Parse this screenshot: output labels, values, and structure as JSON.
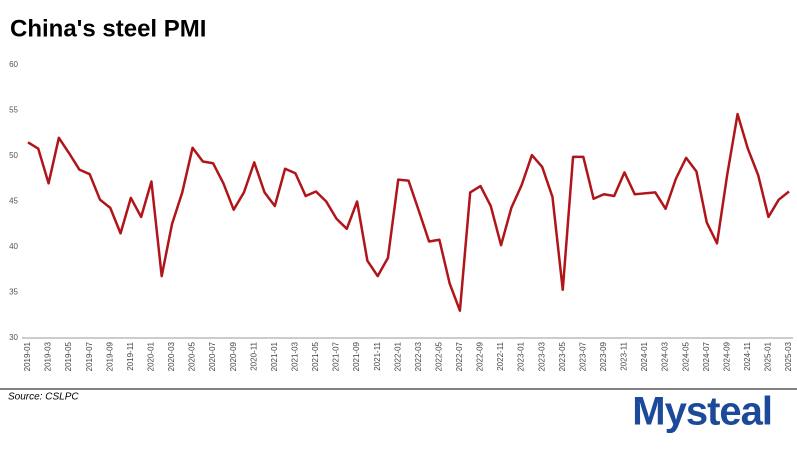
{
  "chart_data": {
    "type": "line",
    "title": "China's steel PMI",
    "source": "Source: CSLPC",
    "logo": "Mysteal",
    "categories": [
      "2019-01",
      null,
      "2019-03",
      null,
      "2019-05",
      null,
      "2019-07",
      null,
      "2019-09",
      null,
      "2019-11",
      null,
      "2020-01",
      null,
      "2020-03",
      null,
      "2020-05",
      null,
      "2020-07",
      null,
      "2020-09",
      null,
      "2020-11",
      null,
      "2021-01",
      null,
      "2021-03",
      null,
      "2021-05",
      null,
      "2021-07",
      null,
      "2021-09",
      null,
      "2021-11",
      null,
      "2022-01",
      null,
      "2022-03",
      null,
      "2022-05",
      null,
      "2022-07",
      null,
      "2022-09",
      null,
      "2022-11",
      null,
      "2023-01",
      null,
      "2023-03",
      null,
      "2023-05",
      null,
      "2023-07",
      null,
      "2023-09",
      null,
      "2023-11",
      null,
      "2024-01",
      null,
      "2024-03",
      null,
      "2024-05",
      null,
      "2024-07",
      null,
      "2024-09",
      null,
      "2024-11",
      null,
      "2025-01",
      null,
      "2025-03"
    ],
    "series": [
      {
        "name": "Steel PMI",
        "color": "#b0151a",
        "values": [
          51.5,
          50.8,
          47.0,
          52.0,
          50.3,
          48.5,
          48.0,
          45.2,
          44.3,
          41.5,
          45.4,
          43.3,
          47.2,
          36.8,
          42.5,
          46.0,
          50.9,
          49.4,
          49.2,
          47.0,
          44.1,
          46.0,
          49.3,
          46.0,
          44.5,
          48.6,
          48.1,
          45.6,
          46.1,
          45.0,
          43.1,
          42.0,
          45.0,
          38.5,
          36.8,
          38.8,
          47.4,
          47.3,
          44.0,
          40.6,
          40.8,
          36.0,
          33.0,
          46.0,
          46.7,
          44.5,
          40.2,
          44.3,
          46.8,
          50.1,
          48.8,
          45.5,
          35.3,
          49.9,
          49.9,
          45.3,
          45.8,
          45.6,
          48.2,
          45.8,
          45.9,
          46.0,
          44.2,
          47.5,
          49.8,
          48.3,
          42.7,
          40.4,
          48.0,
          54.6,
          50.8,
          47.9,
          43.3,
          45.2,
          46.1
        ]
      }
    ],
    "ylim": [
      30,
      60
    ],
    "yticks": [
      30,
      35,
      40,
      45,
      50,
      55,
      60
    ],
    "grid": false
  }
}
